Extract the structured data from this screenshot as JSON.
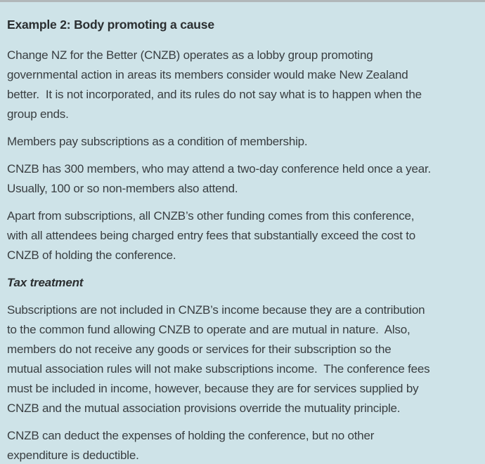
{
  "theme": {
    "background": "#cee3e8",
    "top_border": "#b1b7b9",
    "heading_color": "#2b2f31",
    "body_color": "#393e41"
  },
  "content": {
    "heading": "Example 2: Body promoting a cause",
    "paragraphs": [
      {
        "role": "body",
        "lines": [
          "Change NZ for the Better (CNZB) operates as a lobby group promoting",
          "governmental action in areas its members consider would make New Zealand",
          "better.  It is not incorporated, and its rules do not say what is to happen when the",
          "group ends."
        ]
      },
      {
        "role": "body",
        "lines": [
          "Members pay subscriptions as a condition of membership."
        ]
      },
      {
        "role": "body",
        "lines": [
          "CNZB has 300 members, who may attend a two-day conference held once a year.",
          "Usually, 100 or so non-members also attend."
        ]
      },
      {
        "role": "body",
        "lines": [
          "Apart from subscriptions, all CNZB’s other funding comes from this conference,",
          "with all attendees being charged entry fees that substantially exceed the cost to",
          "CNZB of holding the conference."
        ]
      },
      {
        "role": "subheading",
        "lines": [
          "Tax treatment"
        ]
      },
      {
        "role": "body",
        "lines": [
          "Subscriptions are not included in CNZB’s income because they are a contribution",
          "to the common fund allowing CNZB to operate and are mutual in nature.  Also,",
          "members do not receive any goods or services for their subscription so the",
          "mutual association rules will not make subscriptions income.  The conference fees",
          "must be included in income, however, because they are for services supplied by",
          "CNZB and the mutual association provisions override the mutuality principle."
        ]
      },
      {
        "role": "body",
        "lines": [
          "CNZB can deduct the expenses of holding the conference, but no other",
          "expenditure is deductible."
        ]
      }
    ]
  }
}
